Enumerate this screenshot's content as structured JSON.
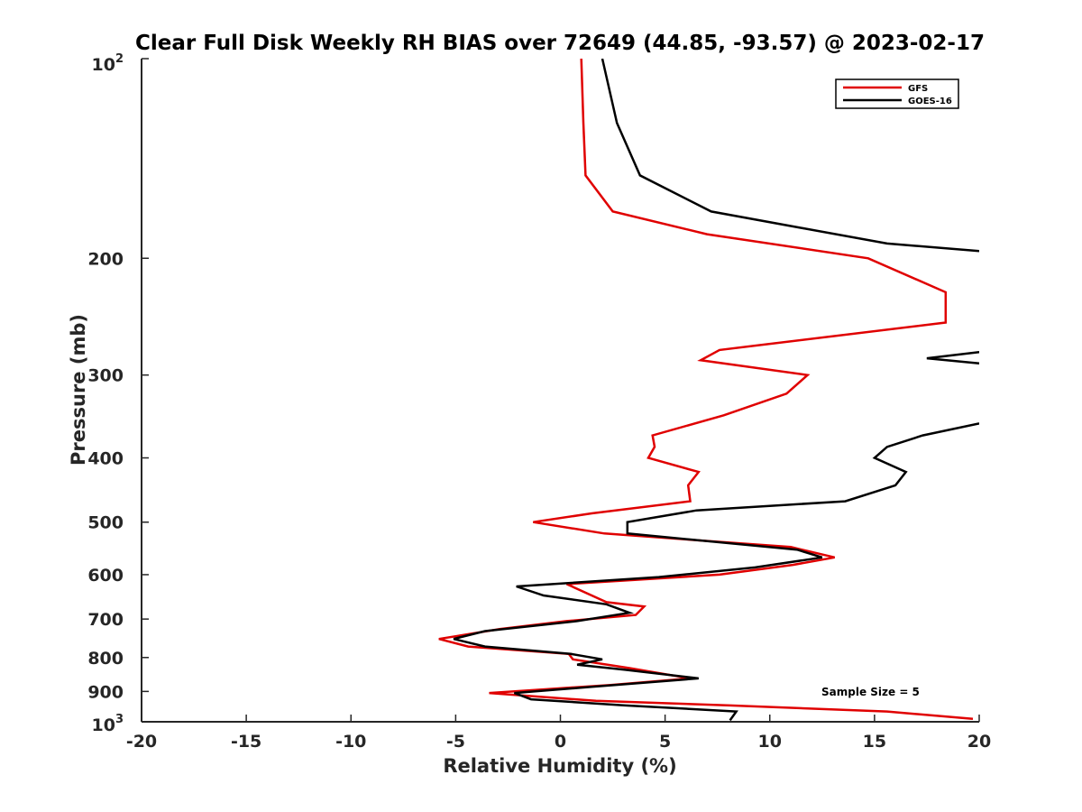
{
  "chart_data": {
    "type": "line",
    "title": "Clear Full Disk Weekly RH BIAS over 72649 (44.85, -93.57) @ 2023-02-17",
    "xlabel": "Relative Humidity (%)",
    "ylabel": "Pressure (mb)",
    "xlim": [
      -20,
      20
    ],
    "ylim": [
      100,
      1000
    ],
    "y_scale": "log",
    "y_reversed": true,
    "x_ticks": [
      -20,
      -15,
      -10,
      -5,
      0,
      5,
      10,
      15,
      20
    ],
    "x_tick_labels": [
      "-20",
      "-15",
      "-10",
      "-5",
      "0",
      "5",
      "10",
      "15",
      "20"
    ],
    "y_ticks": [
      200,
      300,
      400,
      500,
      600,
      700,
      800,
      900
    ],
    "y_tick_labels": [
      "200",
      "300",
      "400",
      "500",
      "600",
      "700",
      "800",
      "900"
    ],
    "y_top_label": {
      "base": "10",
      "exp": "2"
    },
    "y_bottom_label": {
      "base": "10",
      "exp": "3"
    },
    "grid": false,
    "legend_position": "top-right",
    "annotation": "Sample Size = 5",
    "series": [
      {
        "name": "GFS",
        "color": "#e00000",
        "points": [
          [
            1.0,
            100
          ],
          [
            1.1,
            125
          ],
          [
            1.2,
            150
          ],
          [
            2.5,
            170
          ],
          [
            7.0,
            184
          ],
          [
            14.7,
            200
          ],
          [
            18.4,
            225
          ],
          [
            18.4,
            250
          ],
          [
            7.6,
            275
          ],
          [
            6.7,
            285
          ],
          [
            11.8,
            300
          ],
          [
            10.8,
            320
          ],
          [
            7.8,
            345
          ],
          [
            4.4,
            370
          ],
          [
            4.5,
            385
          ],
          [
            4.2,
            400
          ],
          [
            6.6,
            420
          ],
          [
            6.1,
            440
          ],
          [
            6.2,
            465
          ],
          [
            1.5,
            485
          ],
          [
            -1.3,
            500
          ],
          [
            2.1,
            520
          ],
          [
            11.0,
            545
          ],
          [
            13.1,
            565
          ],
          [
            11.1,
            580
          ],
          [
            7.6,
            600
          ],
          [
            0.3,
            620
          ],
          [
            2.2,
            660
          ],
          [
            4.0,
            670
          ],
          [
            3.6,
            690
          ],
          [
            0.3,
            705
          ],
          [
            -2.9,
            725
          ],
          [
            -5.8,
            750
          ],
          [
            -4.4,
            770
          ],
          [
            0.4,
            790
          ],
          [
            0.6,
            805
          ],
          [
            3.3,
            830
          ],
          [
            6.2,
            860
          ],
          [
            2.4,
            880
          ],
          [
            -3.4,
            905
          ],
          [
            1.7,
            930
          ],
          [
            8.1,
            945
          ],
          [
            15.6,
            965
          ],
          [
            19.7,
            990
          ]
        ]
      },
      {
        "name": "GOES-16",
        "color": "#000000",
        "segments": [
          [
            [
              2.0,
              100
            ],
            [
              2.7,
              125
            ],
            [
              3.8,
              150
            ],
            [
              7.2,
              170
            ],
            [
              11.5,
              180
            ],
            [
              15.6,
              190
            ],
            [
              20.0,
              195
            ]
          ],
          [
            [
              20.0,
              277
            ],
            [
              17.5,
              283
            ],
            [
              20.0,
              288
            ]
          ],
          [
            [
              20.0,
              355
            ],
            [
              17.3,
              370
            ],
            [
              15.6,
              385
            ],
            [
              15.0,
              400
            ],
            [
              16.5,
              420
            ],
            [
              16.0,
              440
            ],
            [
              13.6,
              465
            ],
            [
              6.5,
              480
            ],
            [
              3.2,
              500
            ],
            [
              3.2,
              520
            ],
            [
              11.3,
              550
            ],
            [
              12.5,
              565
            ],
            [
              9.3,
              585
            ],
            [
              4.7,
              605
            ],
            [
              -2.1,
              625
            ],
            [
              -0.8,
              645
            ],
            [
              2.2,
              665
            ],
            [
              3.3,
              685
            ],
            [
              0.8,
              705
            ],
            [
              -3.6,
              730
            ],
            [
              -5.1,
              750
            ],
            [
              -3.6,
              770
            ],
            [
              0.5,
              790
            ],
            [
              2.0,
              805
            ],
            [
              0.8,
              820
            ],
            [
              3.1,
              835
            ],
            [
              6.6,
              860
            ],
            [
              2.6,
              880
            ],
            [
              -2.2,
              905
            ],
            [
              -1.4,
              925
            ],
            [
              3.1,
              945
            ],
            [
              8.4,
              965
            ],
            [
              8.1,
              995
            ]
          ]
        ]
      }
    ]
  }
}
